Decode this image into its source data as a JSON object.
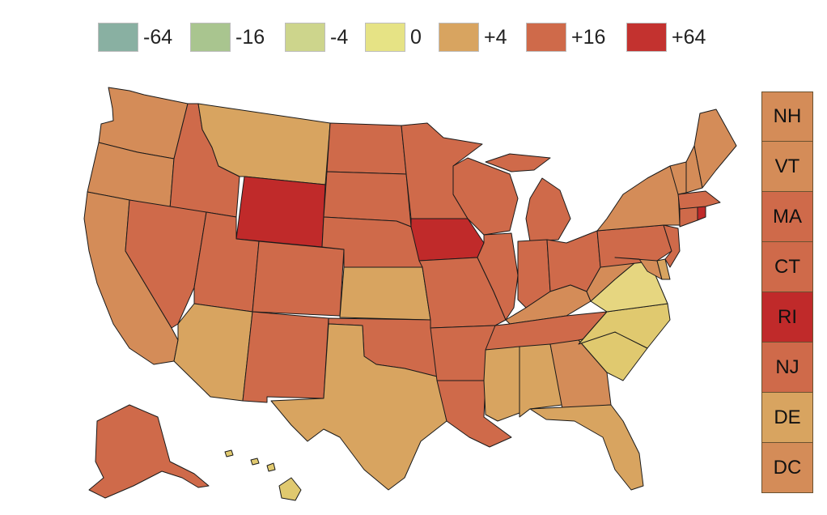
{
  "legend": [
    {
      "label": "-64",
      "color": "#89b0a2"
    },
    {
      "label": "-16",
      "color": "#a9c58f"
    },
    {
      "label": "-4",
      "color": "#cdd58c"
    },
    {
      "label": "0",
      "color": "#e6e385"
    },
    {
      "label": "+4",
      "color": "#d8a460"
    },
    {
      "label": "+16",
      "color": "#cf6a4a"
    },
    {
      "label": "+64",
      "color": "#c3322f"
    }
  ],
  "colors": {
    "plus4": "#d8a460",
    "plus8": "#d48c58",
    "plus16": "#cf6a4a",
    "plus32": "#c8483b",
    "plus64": "#c02a2a",
    "neutral": "#e0c96f",
    "neutral_light": "#e6d680",
    "border": "#1a1a1a"
  },
  "side_boxes": [
    {
      "label": "NH",
      "color": "#d48c58"
    },
    {
      "label": "VT",
      "color": "#d48c58"
    },
    {
      "label": "MA",
      "color": "#cf6a4a"
    },
    {
      "label": "CT",
      "color": "#cf6a4a"
    },
    {
      "label": "RI",
      "color": "#c02a2a"
    },
    {
      "label": "NJ",
      "color": "#cf6a4a"
    },
    {
      "label": "DE",
      "color": "#d8a460"
    },
    {
      "label": "DC",
      "color": "#d48c58"
    }
  ]
}
